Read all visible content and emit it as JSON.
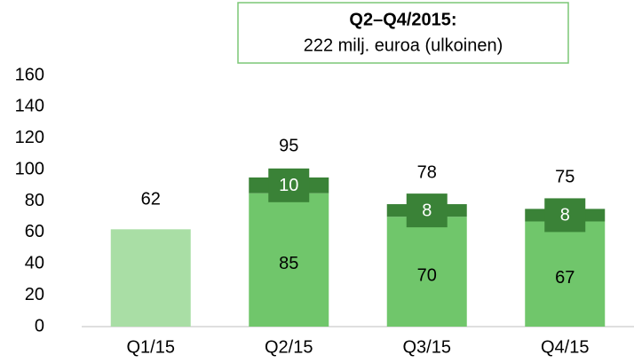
{
  "chart_data": {
    "type": "bar",
    "stacked": true,
    "annotation": {
      "title": "Q2–Q4/2015:",
      "text": "222 milj. euroa (ulkoinen)"
    },
    "categories": [
      "Q1/15",
      "Q2/15",
      "Q3/15",
      "Q4/15"
    ],
    "series": [
      {
        "color": "#a9dea5",
        "values": [
          62,
          null,
          null,
          null
        ]
      },
      {
        "color": "#70c66b",
        "values": [
          null,
          85,
          70,
          67
        ]
      },
      {
        "color": "#3a8237",
        "values": [
          null,
          10,
          8,
          8
        ]
      }
    ],
    "totals": [
      null,
      95,
      78,
      75
    ],
    "ylim": [
      0,
      160
    ],
    "yticks": [
      0,
      20,
      40,
      60,
      80,
      100,
      120,
      140,
      160
    ],
    "grid": false
  }
}
